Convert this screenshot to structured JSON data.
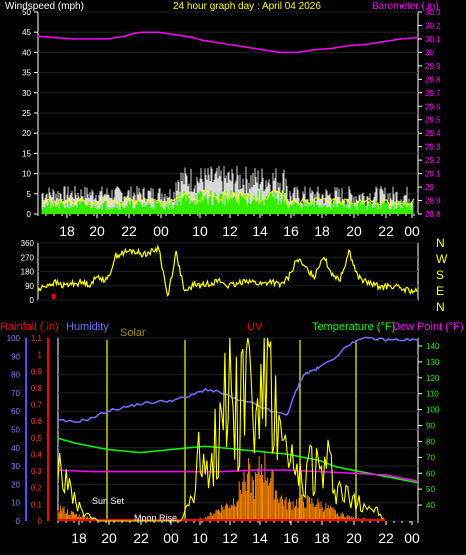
{
  "chart_data": [
    {
      "type": "line",
      "title": "24 hour graph day : April 04 2026",
      "left_label": "Windspeed (mph)",
      "right_label": "Barometer (.in)",
      "y_left_ticks": [
        "0",
        "5",
        "10",
        "15",
        "20",
        "25",
        "30",
        "35",
        "40",
        "45",
        "50"
      ],
      "y_right_ticks": [
        "28.8",
        "28.9",
        "29",
        "29.1",
        "29.2",
        "29.3",
        "29.4",
        "29.5",
        "29.6",
        "29.7",
        "29.8",
        "29.9",
        "30",
        "30.1",
        "30.2",
        "30.3"
      ],
      "x_ticks": [
        "18",
        "20",
        "22",
        "00",
        "10",
        "12",
        "14",
        "16",
        "18",
        "20",
        "22",
        "00"
      ],
      "ylim_left": [
        0,
        50
      ],
      "ylim_right": [
        28.8,
        30.3
      ],
      "colors": {
        "wind": "#ffffff",
        "gust": "#ffff00",
        "avg": "#00ff00",
        "barometer": "#ff00ff",
        "title": "#ffff00",
        "left_label": "#ffffff",
        "right_label": "#ff00ff"
      },
      "series": [
        {
          "key": "barometer",
          "x": [
            0,
            2,
            4,
            6,
            8,
            10,
            11,
            12,
            14,
            16,
            18,
            19,
            20,
            22,
            24,
            26,
            28,
            30,
            32,
            34,
            36,
            38,
            40,
            42,
            44
          ],
          "values": [
            30.12,
            30.11,
            30.1,
            30.1,
            30.1,
            30.12,
            30.14,
            30.15,
            30.15,
            30.13,
            30.11,
            30.09,
            30.08,
            30.06,
            30.04,
            30.02,
            30.0,
            30.0,
            30.02,
            30.03,
            30.05,
            30.06,
            30.08,
            30.1,
            30.11
          ]
        }
      ]
    },
    {
      "type": "line",
      "y_ticks": [
        "0",
        "90",
        "180",
        "270",
        "360"
      ],
      "direction_labels": [
        "N",
        "W",
        "S",
        "E",
        "N"
      ],
      "ylim": [
        0,
        360
      ],
      "colors": {
        "line": "#ffff00",
        "direction": "#ffff00",
        "marker": "#ff0000"
      },
      "x": [
        0,
        1,
        2,
        3,
        4,
        5,
        6,
        7,
        8,
        9,
        10,
        11,
        12,
        13,
        14,
        15,
        16,
        17,
        18,
        19,
        20,
        21,
        22,
        23,
        24,
        25,
        26,
        27,
        28,
        29,
        30,
        31,
        32,
        33,
        34,
        35,
        36,
        37,
        38,
        39,
        40,
        41,
        42,
        43,
        44
      ],
      "values": [
        60,
        95,
        110,
        90,
        105,
        110,
        100,
        150,
        120,
        280,
        300,
        310,
        290,
        300,
        330,
        20,
        300,
        40,
        100,
        90,
        110,
        120,
        90,
        95,
        130,
        110,
        100,
        120,
        90,
        140,
        260,
        200,
        150,
        280,
        170,
        130,
        310,
        150,
        110,
        95,
        80,
        90,
        70,
        60,
        50
      ]
    },
    {
      "type": "line",
      "labels": {
        "rainfall": "Rainfall (.in)",
        "humidity": "Humidity",
        "solar": "Solar",
        "uv": "UV",
        "temperature": "Temperature (°F)",
        "dew_point": "Dew Point (°F)"
      },
      "annotations": [
        "Sun Set",
        "Moon Rise"
      ],
      "y_left_ticks": [
        "0",
        "10",
        "20",
        "30",
        "40",
        "50",
        "60",
        "70",
        "80",
        "90",
        "100"
      ],
      "y_rain_ticks": [
        "0",
        "0.1",
        "0.2",
        "0.3",
        "0.4",
        "0.5",
        "0.6",
        "0.7",
        "0.8",
        "0.9",
        "1",
        "1.1"
      ],
      "y_right_ticks": [
        "40",
        "50",
        "60",
        "70",
        "80",
        "90",
        "100",
        "110",
        "120",
        "130",
        "140"
      ],
      "x_ticks": [
        "18",
        "20",
        "22",
        "00",
        "10",
        "12",
        "14",
        "16",
        "18",
        "20",
        "22",
        "00"
      ],
      "ylim_humidity": [
        0,
        100
      ],
      "ylim_rain": [
        0,
        1.1
      ],
      "ylim_temp": [
        30,
        145
      ],
      "colors": {
        "rainfall": "#ff0000",
        "humidity": "#7070ff",
        "solar": "#ffff00",
        "uv": "#ff8800",
        "temperature": "#00ff00",
        "dew_point": "#ff00ff",
        "solar_label": "#a09000",
        "uv_label": "#ff0000",
        "temp_label": "#00ff00",
        "dew_label": "#ff00ff",
        "annotation": "#ffffff"
      },
      "series": [
        {
          "key": "humidity",
          "x": [
            0,
            2,
            4,
            6,
            8,
            10,
            12,
            14,
            16,
            18,
            20,
            22,
            24,
            26,
            28,
            29,
            30,
            31,
            32,
            34,
            36,
            38,
            40,
            42,
            44
          ],
          "values": [
            55,
            54,
            56,
            60,
            62,
            64,
            65,
            66,
            68,
            72,
            70,
            66,
            64,
            60,
            58,
            70,
            80,
            82,
            84,
            90,
            98,
            100,
            99,
            99,
            99
          ]
        },
        {
          "key": "temperature",
          "x": [
            0,
            2,
            4,
            6,
            8,
            10,
            12,
            14,
            16,
            18,
            20,
            22,
            24,
            26,
            28,
            30,
            32,
            34,
            36,
            38,
            40,
            42,
            44
          ],
          "values": [
            82,
            79,
            77,
            75,
            74,
            73,
            74,
            75,
            76,
            77,
            76,
            75,
            74,
            73,
            72,
            70,
            68,
            64,
            62,
            60,
            58,
            56,
            54
          ]
        },
        {
          "key": "dew_point",
          "x": [
            0,
            4,
            8,
            12,
            16,
            20,
            24,
            28,
            32,
            36,
            40,
            42,
            44
          ],
          "values": [
            62,
            61,
            61,
            61,
            61,
            61,
            62,
            62,
            61,
            60,
            59,
            57,
            55
          ]
        },
        {
          "key": "solar",
          "x": [
            0,
            1,
            2,
            3,
            4,
            5,
            6,
            7,
            8,
            9,
            10,
            11,
            12,
            13,
            14,
            15,
            16,
            17,
            18,
            19,
            20,
            21,
            22,
            23,
            24,
            25,
            26,
            27,
            28,
            29,
            30,
            31,
            32,
            33,
            34,
            35,
            36,
            37,
            38,
            39,
            40
          ],
          "values": [
            40,
            20,
            10,
            5,
            2,
            0,
            0,
            0,
            0,
            0,
            0,
            0,
            0,
            0,
            0,
            0,
            10,
            30,
            40,
            35,
            60,
            80,
            60,
            90,
            50,
            85,
            70,
            45,
            30,
            25,
            20,
            35,
            25,
            30,
            20,
            15,
            10,
            12,
            8,
            5,
            0
          ]
        },
        {
          "key": "uv",
          "x": [
            0,
            2,
            4,
            6,
            8,
            10,
            12,
            14,
            16,
            18,
            20,
            21,
            22,
            23,
            24,
            25,
            26,
            27,
            28,
            30,
            32,
            34,
            36,
            38,
            40
          ],
          "values": [
            0.08,
            0.04,
            0.02,
            0,
            0,
            0,
            0,
            0,
            0,
            0.02,
            0.08,
            0.1,
            0.15,
            0.3,
            0.2,
            0.35,
            0.25,
            0.15,
            0.1,
            0.12,
            0.1,
            0.05,
            0.02,
            0.01,
            0
          ]
        }
      ]
    }
  ]
}
